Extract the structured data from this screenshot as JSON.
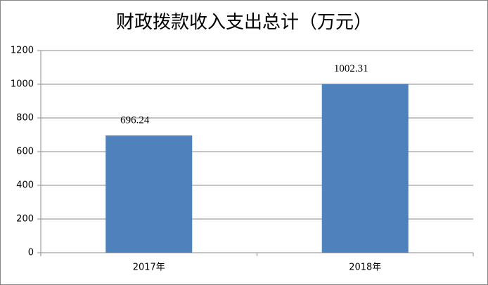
{
  "chart_data": {
    "type": "bar",
    "title": "财政拨款收入支出总计（万元）",
    "categories": [
      "2017年",
      "2018年"
    ],
    "values": [
      696.24,
      1002.31
    ],
    "color": "#4f81bd",
    "ylim": [
      0,
      1200
    ],
    "yticks": [
      0,
      200,
      400,
      600,
      800,
      1000,
      1200
    ],
    "grid": true
  }
}
